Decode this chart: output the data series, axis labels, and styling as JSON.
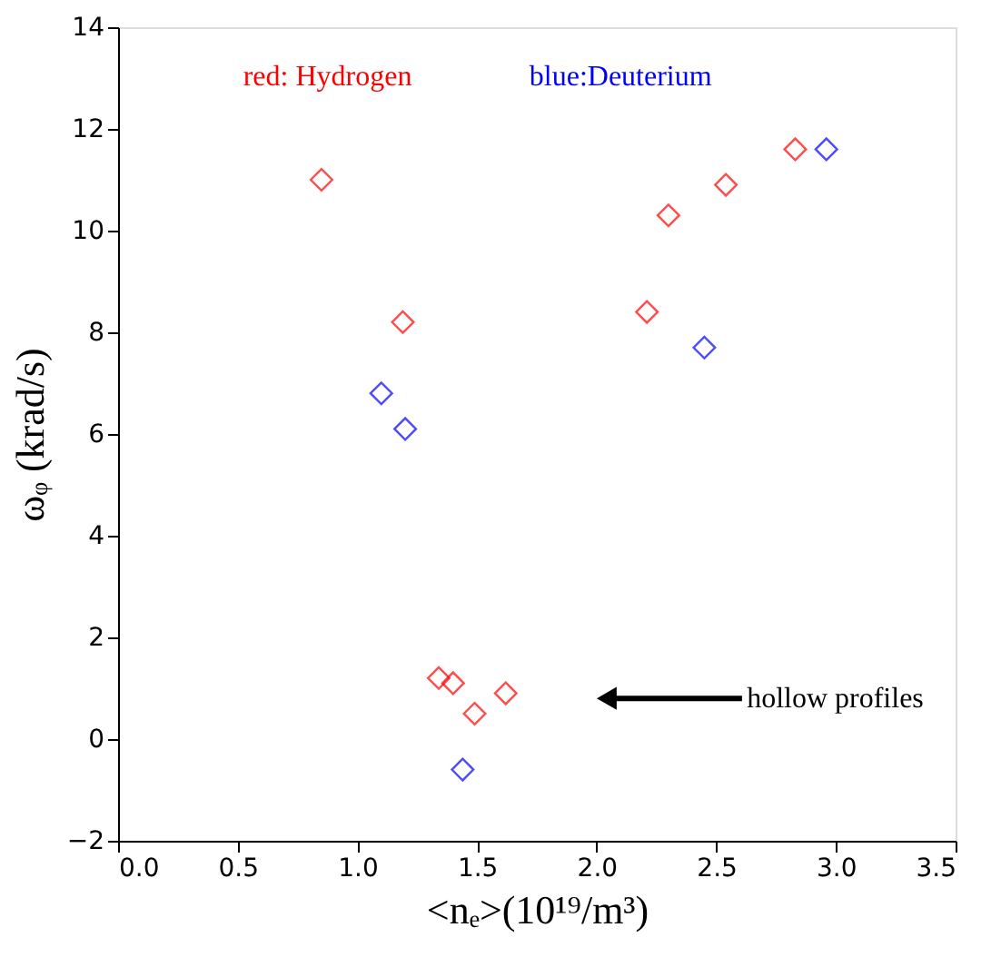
{
  "chart_data": {
    "type": "scatter",
    "xlabel": "<nₑ>(10¹⁹/m³)",
    "ylabel": "ωᵩ (krad/s)",
    "xlim": [
      0,
      3.5
    ],
    "xticks": [
      {
        "value": 0,
        "label": "0.0"
      },
      0.5,
      {
        "value": 1,
        "label": "1.0"
      },
      1.5,
      {
        "value": 2,
        "label": "2.0"
      },
      2.5,
      {
        "value": 3,
        "label": "3.0"
      },
      3.5
    ],
    "ylim": [
      -2,
      14
    ],
    "yticks": [
      -2,
      0,
      2,
      4,
      6,
      8,
      10,
      12,
      14
    ],
    "grid": false,
    "legend": "top left",
    "marker": "diamond",
    "series": [
      {
        "name": "red: Hydrogen",
        "color": "#ff0000",
        "x": [
          0.85,
          1.19,
          1.34,
          1.4,
          1.49,
          1.62,
          2.21,
          2.3,
          2.54,
          2.83
        ],
        "values": [
          11.0,
          8.2,
          1.2,
          1.1,
          0.5,
          0.9,
          8.4,
          10.3,
          10.9,
          11.6
        ]
      },
      {
        "name": "blue:Deuterium",
        "color": "#0000ff",
        "x": [
          1.1,
          1.2,
          1.44,
          2.45,
          2.96
        ],
        "values": [
          6.8,
          6.1,
          -0.6,
          7.7,
          11.6
        ]
      }
    ],
    "annotations": [
      "hollow profiles"
    ]
  }
}
